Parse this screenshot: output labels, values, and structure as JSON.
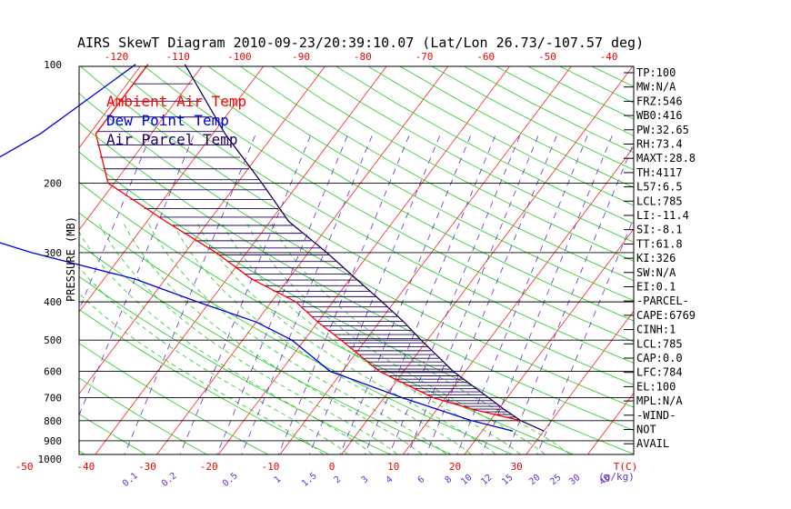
{
  "chart_data": {
    "type": "line",
    "title": "AIRS SkewT Diagram 2010-09-23/20:39:10.07 (Lat/Lon 26.73/-107.57 deg)",
    "ylabel": "PRESSURE (MB)",
    "xlabel_unit": "T(C)",
    "mixing_ratio_unit": "(g/kg)",
    "legend": [
      "Ambient Air Temp",
      "Dew Point Temp",
      "Air Parcel Temp"
    ],
    "pressure_ticks": [
      100,
      200,
      300,
      400,
      500,
      600,
      700,
      800,
      900,
      1000
    ],
    "top_temp_ticks": [
      -120,
      -110,
      -100,
      -90,
      -80,
      -70,
      -60,
      -50,
      -40
    ],
    "bottom_temp_ticks": [
      -50,
      -40,
      -30,
      -20,
      -10,
      0,
      10,
      20,
      30
    ],
    "mixing_ratio_ticks": [
      "0.1",
      "0.2",
      "0.5",
      "1",
      "1.5",
      "2",
      "3",
      "4",
      "6",
      "8",
      "10",
      "12",
      "15",
      "20",
      "25",
      "30",
      "40"
    ],
    "series": [
      {
        "name": "Ambient Air Temp",
        "color": "#ff0000",
        "points": [
          {
            "p": 100,
            "t": -79
          },
          {
            "p": 150,
            "t": -79
          },
          {
            "p": 200,
            "t": -71
          },
          {
            "p": 250,
            "t": -57
          },
          {
            "p": 300,
            "t": -45
          },
          {
            "p": 350,
            "t": -36
          },
          {
            "p": 400,
            "t": -26
          },
          {
            "p": 450,
            "t": -20
          },
          {
            "p": 500,
            "t": -14
          },
          {
            "p": 600,
            "t": -4
          },
          {
            "p": 700,
            "t": 8
          },
          {
            "p": 750,
            "t": 16
          },
          {
            "p": 800,
            "t": 25
          }
        ]
      },
      {
        "name": "Dew Point Temp",
        "color": "#0000dd",
        "points": [
          {
            "p": 100,
            "t": -81
          },
          {
            "p": 150,
            "t": -88
          },
          {
            "p": 200,
            "t": -96
          },
          {
            "p": 250,
            "t": -95
          },
          {
            "p": 300,
            "t": -75
          },
          {
            "p": 350,
            "t": -55
          },
          {
            "p": 400,
            "t": -42
          },
          {
            "p": 450,
            "t": -30
          },
          {
            "p": 500,
            "t": -22
          },
          {
            "p": 600,
            "t": -12
          },
          {
            "p": 700,
            "t": 3
          },
          {
            "p": 800,
            "t": 17
          },
          {
            "p": 850,
            "t": 25
          }
        ]
      },
      {
        "name": "Air Parcel Temp",
        "color": "#200060",
        "points": [
          {
            "p": 100,
            "t": -73
          },
          {
            "p": 150,
            "t": -58
          },
          {
            "p": 200,
            "t": -46
          },
          {
            "p": 250,
            "t": -37
          },
          {
            "p": 300,
            "t": -27
          },
          {
            "p": 350,
            "t": -19
          },
          {
            "p": 400,
            "t": -12
          },
          {
            "p": 450,
            "t": -6
          },
          {
            "p": 500,
            "t": -1
          },
          {
            "p": 600,
            "t": 8
          },
          {
            "p": 700,
            "t": 17
          },
          {
            "p": 750,
            "t": 21
          },
          {
            "p": 800,
            "t": 25
          },
          {
            "p": 850,
            "t": 30
          }
        ]
      }
    ],
    "indices": [
      "TP:100",
      "MW:N/A",
      "FRZ:546",
      "WB0:416",
      "PW:32.65",
      "RH:73.4",
      "MAXT:28.8",
      "TH:4117",
      "L57:6.5",
      "LCL:785",
      "LI:-11.4",
      "SI:-8.1",
      "TT:61.8",
      "KI:326",
      "SW:N/A",
      "EI:0.1",
      "-PARCEL-",
      "CAPE:6769",
      "CINH:1",
      "LCL:785",
      "CAP:0.0",
      "LFC:784",
      "EL:100",
      "MPL:N/A",
      "-WIND-",
      "NOT",
      "AVAIL"
    ]
  }
}
